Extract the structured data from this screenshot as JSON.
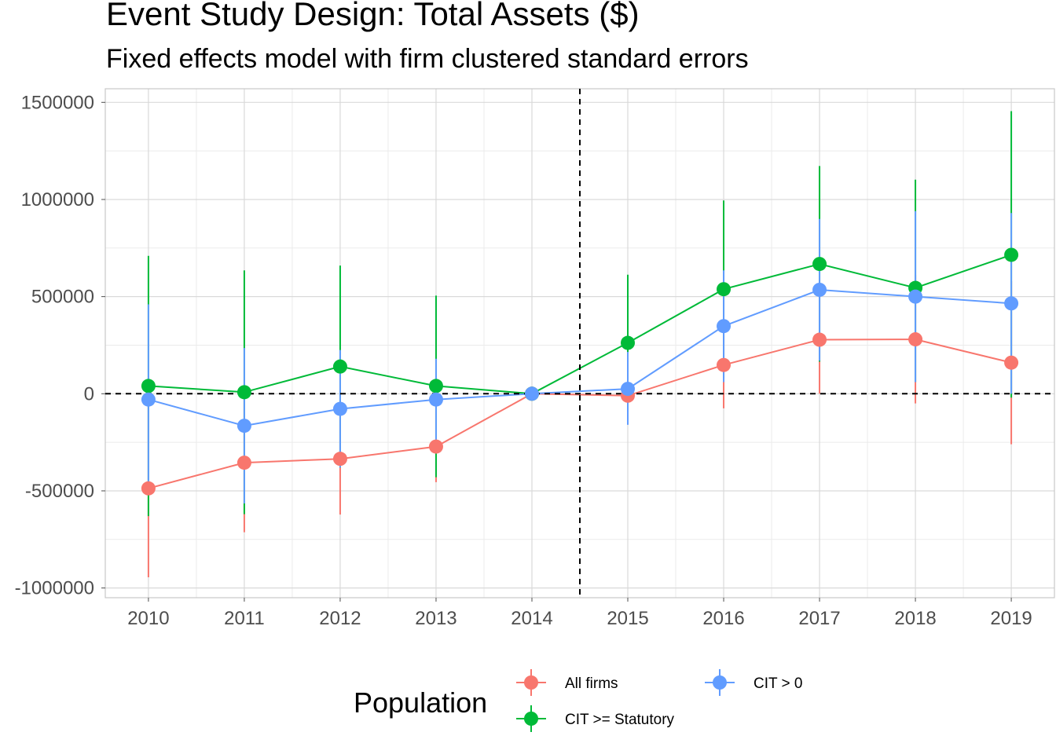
{
  "title": "Event Study Design: Total Assets ($)",
  "subtitle": "Fixed effects model with firm clustered standard errors",
  "chart_data": {
    "type": "line",
    "title": "Event Study Design: Total Assets ($)",
    "subtitle": "Fixed effects model with firm clustered standard errors",
    "xlabel": "",
    "ylabel": "",
    "x": [
      2010,
      2011,
      2012,
      2013,
      2014,
      2015,
      2016,
      2017,
      2018,
      2019
    ],
    "xlim": [
      2009.55,
      2019.45
    ],
    "ylim": [
      -1050000,
      1570000
    ],
    "yticks": [
      -1000000,
      -500000,
      0,
      500000,
      1000000,
      1500000
    ],
    "ytick_labels": [
      "-1000000",
      "-500000",
      "0",
      "500000",
      "1000000",
      "1500000"
    ],
    "xtick_labels": [
      "2010",
      "2011",
      "2012",
      "2013",
      "2014",
      "2015",
      "2016",
      "2017",
      "2018",
      "2019"
    ],
    "reference_lines": {
      "horizontal": 0,
      "vertical": 2014.5,
      "style": "dashed"
    },
    "grid": true,
    "legend": {
      "title": "Population",
      "position": "bottom",
      "entries": [
        "All firms",
        "CIT >= Statutory",
        "CIT > 0"
      ]
    },
    "series": [
      {
        "name": "All firms",
        "color": "#F8766D",
        "values": [
          -487000,
          -355000,
          -335000,
          -272000,
          0,
          -10000,
          148000,
          278000,
          280000,
          160000
        ],
        "ci_low": [
          -945000,
          -713000,
          -622000,
          -455000,
          0,
          -30000,
          -75000,
          0,
          -50000,
          -260000
        ],
        "ci_high": [
          -30000,
          0,
          -50000,
          -90000,
          0,
          10000,
          370000,
          560000,
          610000,
          580000
        ]
      },
      {
        "name": "CIT >= Statutory",
        "color": "#00BA38",
        "values": [
          40000,
          8000,
          140000,
          40000,
          0,
          262000,
          538000,
          668000,
          545000,
          715000
        ],
        "ci_low": [
          -630000,
          -620000,
          -380000,
          -430000,
          0,
          -90000,
          80000,
          165000,
          60000,
          -20000
        ],
        "ci_high": [
          710000,
          635000,
          660000,
          505000,
          0,
          613000,
          995000,
          1172000,
          1102000,
          1455000
        ]
      },
      {
        "name": "CIT > 0",
        "color": "#619CFF",
        "values": [
          -30000,
          -165000,
          -78000,
          -30000,
          0,
          25000,
          348000,
          535000,
          500000,
          465000
        ],
        "ci_low": [
          -520000,
          -565000,
          -380000,
          -240000,
          0,
          -160000,
          60000,
          170000,
          60000,
          0
        ],
        "ci_high": [
          460000,
          235000,
          225000,
          180000,
          0,
          215000,
          635000,
          900000,
          940000,
          930000
        ]
      }
    ]
  }
}
